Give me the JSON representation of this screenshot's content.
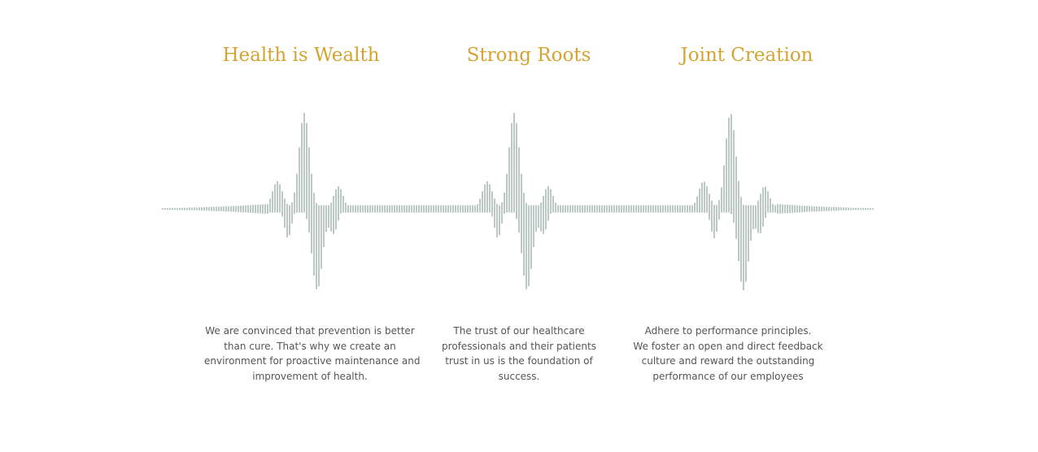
{
  "colors": {
    "title": "#d3a431",
    "text": "#555555",
    "wave": "#7a9086",
    "background": "#ffffff"
  },
  "values": [
    {
      "title": "Health is Wealth",
      "description": [
        "We are convinced that prevention is better",
        "than cure. That's why we create an",
        "environment for proactive maintenance and",
        "improvement of health."
      ]
    },
    {
      "title": "Strong Roots",
      "description": [
        "The trust of our healthcare",
        "professionals and their patients",
        "trust in us is the foundation of",
        "success."
      ]
    },
    {
      "title": "Joint Creation",
      "description": [
        "Adhere to performance principles.",
        "We foster an open and direct feedback",
        "culture and reward the outstanding",
        "performance of our employees"
      ]
    }
  ]
}
